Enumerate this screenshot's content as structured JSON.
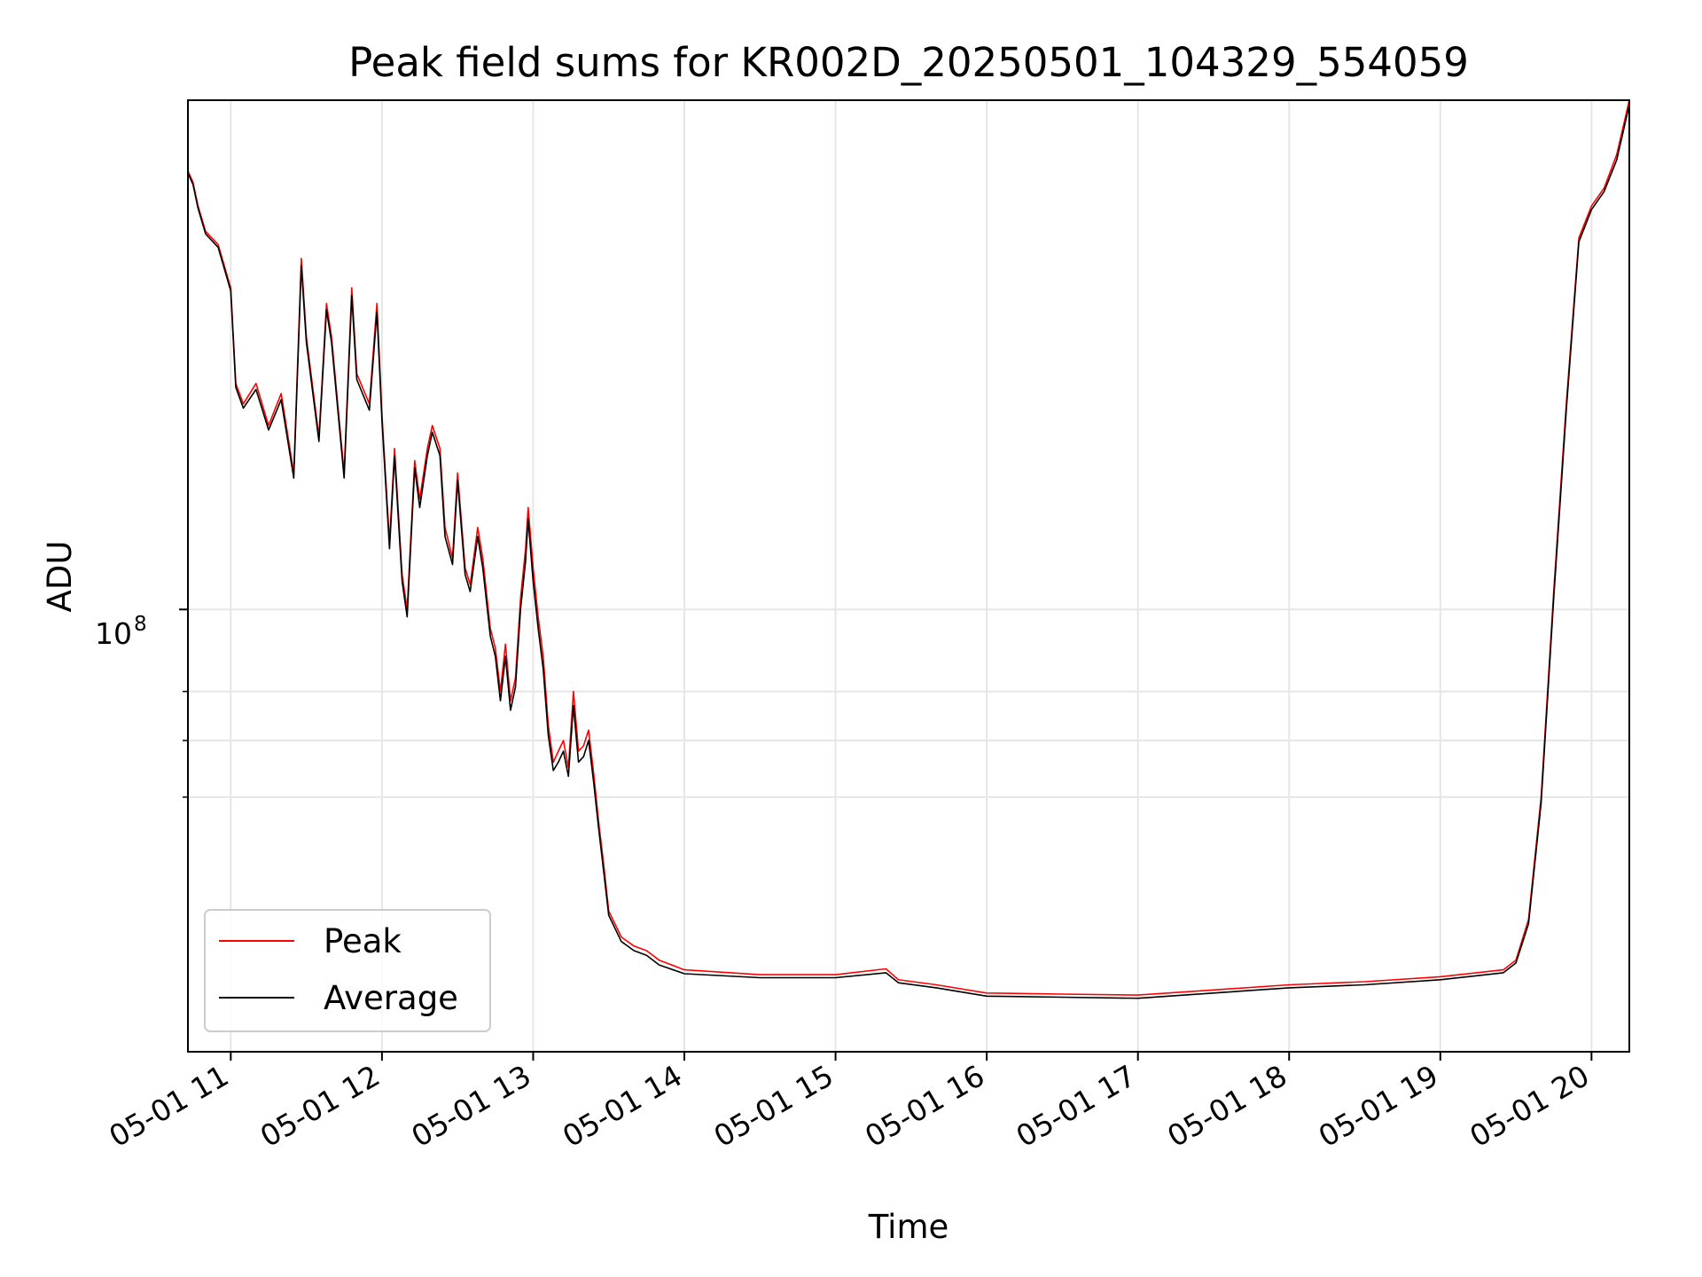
{
  "chart_data": {
    "type": "line",
    "title": "Peak field sums for KR002D_20250501_104329_554059",
    "xlabel": "Time",
    "ylabel": "ADU",
    "x_scale": "time",
    "y_scale": "log",
    "xlim": [
      "2025-05-01 10:43",
      "2025-05-01 20:15"
    ],
    "ylim": [
      30000000,
      400000000
    ],
    "x_ticks": [
      "05-01 11",
      "05-01 12",
      "05-01 13",
      "05-01 14",
      "05-01 15",
      "05-01 16",
      "05-01 17",
      "05-01 18",
      "05-01 19",
      "05-01 20"
    ],
    "y_major_tick_label": {
      "base": "10",
      "exponent": "8"
    },
    "y_major_tick_value": 100000000,
    "y_minor_tick_values": [
      60000000,
      70000000,
      80000000
    ],
    "grid": true,
    "legend_position": "lower-left",
    "series": [
      {
        "name": "Peak",
        "color": "#ff0000",
        "points": [
          [
            "10:43",
            330000000
          ],
          [
            "10:45",
            320000000
          ],
          [
            "10:47",
            300000000
          ],
          [
            "10:50",
            280000000
          ],
          [
            "10:55",
            270000000
          ],
          [
            "11:00",
            240000000
          ],
          [
            "11:02",
            185000000
          ],
          [
            "11:05",
            175000000
          ],
          [
            "11:10",
            185000000
          ],
          [
            "11:15",
            165000000
          ],
          [
            "11:20",
            180000000
          ],
          [
            "11:25",
            145000000
          ],
          [
            "11:28",
            260000000
          ],
          [
            "11:30",
            210000000
          ],
          [
            "11:35",
            160000000
          ],
          [
            "11:38",
            230000000
          ],
          [
            "11:40",
            210000000
          ],
          [
            "11:45",
            145000000
          ],
          [
            "11:48",
            240000000
          ],
          [
            "11:50",
            190000000
          ],
          [
            "11:55",
            175000000
          ],
          [
            "11:58",
            230000000
          ],
          [
            "12:00",
            170000000
          ],
          [
            "12:03",
            120000000
          ],
          [
            "12:05",
            155000000
          ],
          [
            "12:08",
            110000000
          ],
          [
            "12:10",
            100000000
          ],
          [
            "12:13",
            150000000
          ],
          [
            "12:15",
            135000000
          ],
          [
            "12:18",
            155000000
          ],
          [
            "12:20",
            165000000
          ],
          [
            "12:23",
            155000000
          ],
          [
            "12:25",
            125000000
          ],
          [
            "12:28",
            115000000
          ],
          [
            "12:30",
            145000000
          ],
          [
            "12:33",
            112000000
          ],
          [
            "12:35",
            107000000
          ],
          [
            "12:38",
            125000000
          ],
          [
            "12:40",
            115000000
          ],
          [
            "12:43",
            95000000
          ],
          [
            "12:45",
            90000000
          ],
          [
            "12:47",
            80000000
          ],
          [
            "12:49",
            91000000
          ],
          [
            "12:51",
            78000000
          ],
          [
            "12:53",
            83000000
          ],
          [
            "12:55",
            103000000
          ],
          [
            "12:57",
            118000000
          ],
          [
            "12:58",
            132000000
          ],
          [
            "13:00",
            112000000
          ],
          [
            "13:02",
            98000000
          ],
          [
            "13:04",
            88000000
          ],
          [
            "13:06",
            73000000
          ],
          [
            "13:08",
            66000000
          ],
          [
            "13:10",
            68000000
          ],
          [
            "13:12",
            70000000
          ],
          [
            "13:14",
            65000000
          ],
          [
            "13:16",
            80000000
          ],
          [
            "13:18",
            68000000
          ],
          [
            "13:20",
            69000000
          ],
          [
            "13:22",
            72000000
          ],
          [
            "13:24",
            64000000
          ],
          [
            "13:26",
            56000000
          ],
          [
            "13:28",
            50000000
          ],
          [
            "13:30",
            44000000
          ],
          [
            "13:35",
            41000000
          ],
          [
            "13:40",
            40000000
          ],
          [
            "13:45",
            39500000
          ],
          [
            "13:50",
            38500000
          ],
          [
            "14:00",
            37500000
          ],
          [
            "14:30",
            37000000
          ],
          [
            "15:00",
            37000000
          ],
          [
            "15:20",
            37600000
          ],
          [
            "15:25",
            36500000
          ],
          [
            "15:40",
            36000000
          ],
          [
            "16:00",
            35200000
          ],
          [
            "16:30",
            35100000
          ],
          [
            "17:00",
            35000000
          ],
          [
            "17:30",
            35500000
          ],
          [
            "18:00",
            36000000
          ],
          [
            "18:30",
            36300000
          ],
          [
            "19:00",
            36800000
          ],
          [
            "19:25",
            37500000
          ],
          [
            "19:30",
            38500000
          ],
          [
            "19:35",
            43000000
          ],
          [
            "19:40",
            60000000
          ],
          [
            "19:45",
            105000000
          ],
          [
            "19:50",
            175000000
          ],
          [
            "19:55",
            275000000
          ],
          [
            "20:00",
            300000000
          ],
          [
            "20:05",
            315000000
          ],
          [
            "20:10",
            345000000
          ],
          [
            "20:15",
            400000000
          ]
        ]
      },
      {
        "name": "Average",
        "color": "#000000",
        "points": [
          [
            "10:43",
            328000000
          ],
          [
            "10:45",
            318000000
          ],
          [
            "10:47",
            298000000
          ],
          [
            "10:50",
            278000000
          ],
          [
            "10:55",
            268000000
          ],
          [
            "11:00",
            238000000
          ],
          [
            "11:02",
            183000000
          ],
          [
            "11:05",
            173000000
          ],
          [
            "11:10",
            182000000
          ],
          [
            "11:15",
            163000000
          ],
          [
            "11:20",
            177000000
          ],
          [
            "11:25",
            143000000
          ],
          [
            "11:28",
            255000000
          ],
          [
            "11:30",
            207000000
          ],
          [
            "11:35",
            158000000
          ],
          [
            "11:38",
            226000000
          ],
          [
            "11:40",
            207000000
          ],
          [
            "11:45",
            143000000
          ],
          [
            "11:48",
            235000000
          ],
          [
            "11:50",
            187000000
          ],
          [
            "11:55",
            172000000
          ],
          [
            "11:58",
            225000000
          ],
          [
            "12:00",
            167000000
          ],
          [
            "12:03",
            118000000
          ],
          [
            "12:05",
            152000000
          ],
          [
            "12:08",
            108000000
          ],
          [
            "12:10",
            98000000
          ],
          [
            "12:13",
            147000000
          ],
          [
            "12:15",
            132000000
          ],
          [
            "12:18",
            152000000
          ],
          [
            "12:20",
            162000000
          ],
          [
            "12:23",
            152000000
          ],
          [
            "12:25",
            122000000
          ],
          [
            "12:28",
            113000000
          ],
          [
            "12:30",
            142000000
          ],
          [
            "12:33",
            110000000
          ],
          [
            "12:35",
            105000000
          ],
          [
            "12:38",
            122000000
          ],
          [
            "12:40",
            112000000
          ],
          [
            "12:43",
            93000000
          ],
          [
            "12:45",
            88000000
          ],
          [
            "12:47",
            78000000
          ],
          [
            "12:49",
            88000000
          ],
          [
            "12:51",
            76000000
          ],
          [
            "12:53",
            81000000
          ],
          [
            "12:55",
            100000000
          ],
          [
            "12:57",
            114000000
          ],
          [
            "12:58",
            128000000
          ],
          [
            "13:00",
            108000000
          ],
          [
            "13:02",
            95000000
          ],
          [
            "13:04",
            85000000
          ],
          [
            "13:06",
            71000000
          ],
          [
            "13:08",
            64500000
          ],
          [
            "13:10",
            66000000
          ],
          [
            "13:12",
            68000000
          ],
          [
            "13:14",
            63500000
          ],
          [
            "13:16",
            77000000
          ],
          [
            "13:18",
            66000000
          ],
          [
            "13:20",
            67000000
          ],
          [
            "13:22",
            70000000
          ],
          [
            "13:24",
            62500000
          ],
          [
            "13:26",
            55000000
          ],
          [
            "13:28",
            49000000
          ],
          [
            "13:30",
            43500000
          ],
          [
            "13:35",
            40500000
          ],
          [
            "13:40",
            39500000
          ],
          [
            "13:45",
            39000000
          ],
          [
            "13:50",
            38000000
          ],
          [
            "14:00",
            37100000
          ],
          [
            "14:30",
            36700000
          ],
          [
            "15:00",
            36700000
          ],
          [
            "15:20",
            37200000
          ],
          [
            "15:25",
            36200000
          ],
          [
            "15:40",
            35700000
          ],
          [
            "16:00",
            34900000
          ],
          [
            "16:30",
            34800000
          ],
          [
            "17:00",
            34700000
          ],
          [
            "17:30",
            35200000
          ],
          [
            "18:00",
            35700000
          ],
          [
            "18:30",
            36000000
          ],
          [
            "19:00",
            36500000
          ],
          [
            "19:25",
            37200000
          ],
          [
            "19:30",
            38200000
          ],
          [
            "19:35",
            42500000
          ],
          [
            "19:40",
            59000000
          ],
          [
            "19:45",
            103000000
          ],
          [
            "19:50",
            172000000
          ],
          [
            "19:55",
            272000000
          ],
          [
            "20:00",
            297000000
          ],
          [
            "20:05",
            312000000
          ],
          [
            "20:10",
            340000000
          ],
          [
            "20:15",
            395000000
          ]
        ]
      }
    ]
  }
}
